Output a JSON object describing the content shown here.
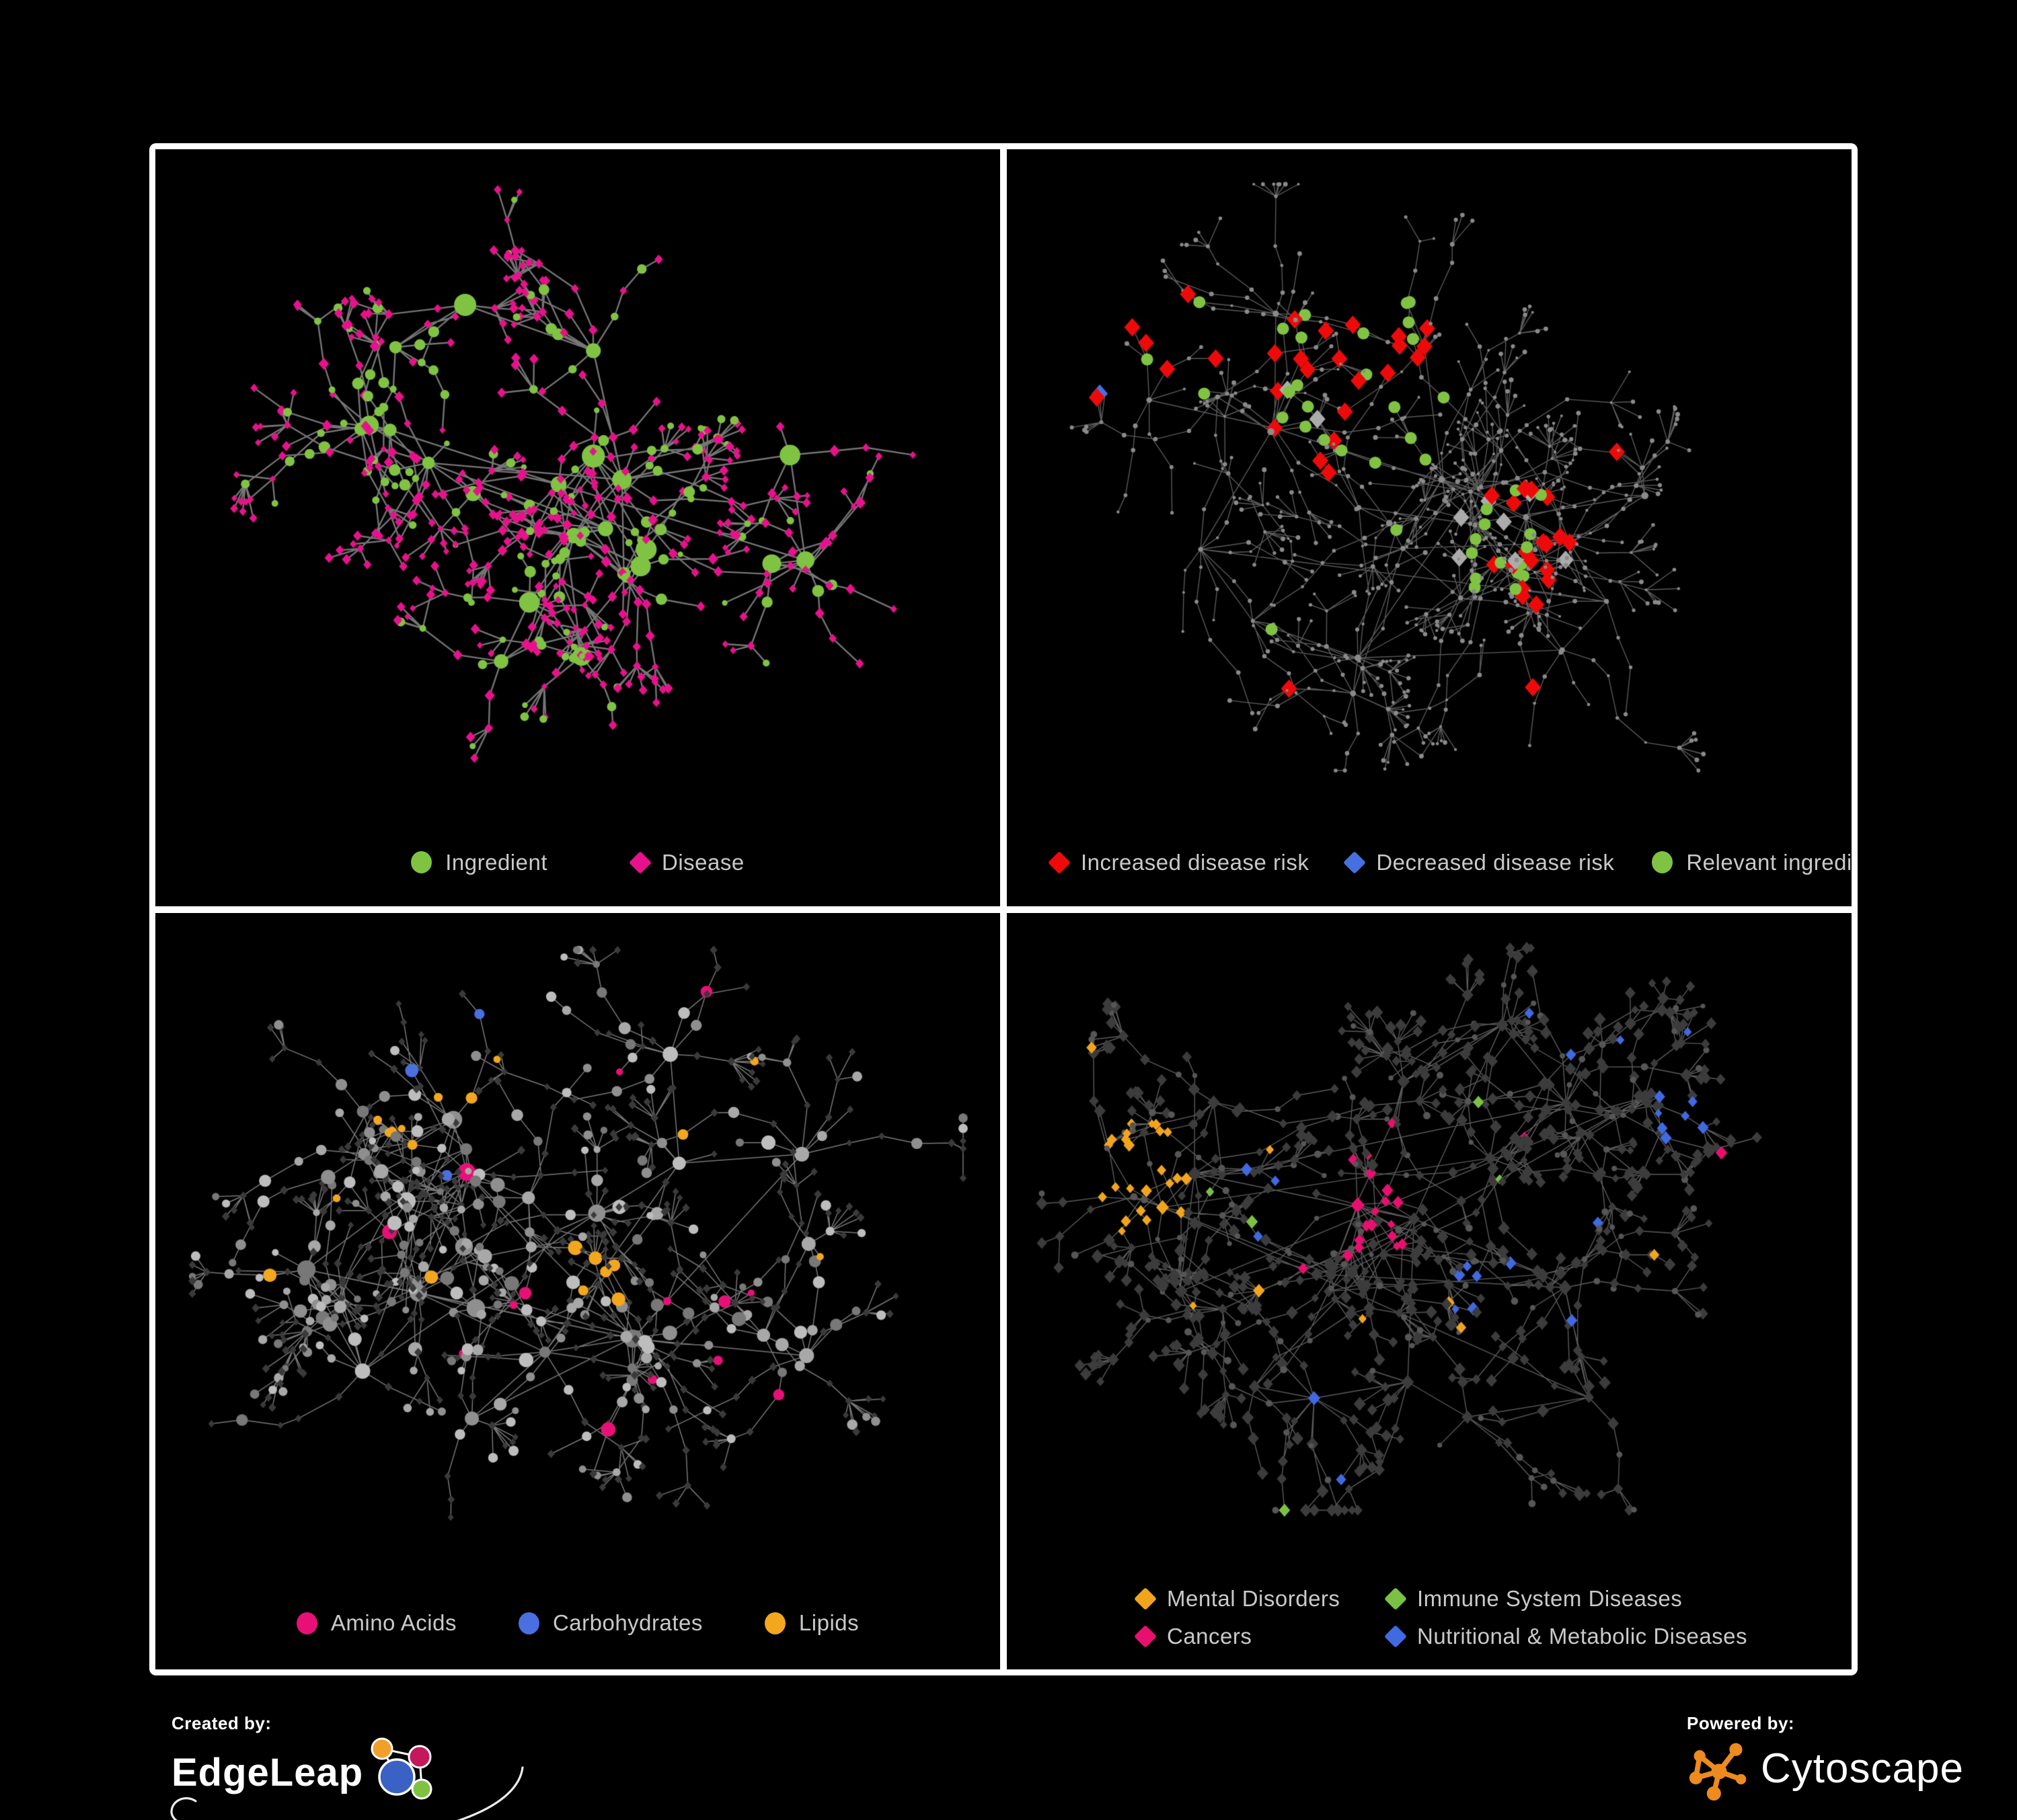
{
  "page": {
    "background": "#000000",
    "panel_border": "#FFFFFF"
  },
  "branding": {
    "created_by_label": "Created by:",
    "created_by_brand": "EdgeLeap",
    "powered_by_label": "Powered by:",
    "powered_by_brand": "Cytoscape",
    "cytoscape_icon_color": "#ED8B1E",
    "edgeleap_icon_colors": {
      "orange": "#F0A029",
      "crimson": "#C4175C",
      "blue": "#3A62C4",
      "green": "#7FC242"
    }
  },
  "chart_data": [
    {
      "id": "ingredient-disease",
      "position": "top-left",
      "type": "network",
      "description": "Bipartite association network of food ingredients (green circles) and diseases (pink diamonds); hub-and-spoke organic layout on black background, gray edges.",
      "approx_node_count": 650,
      "legend": [
        {
          "label": "Ingredient",
          "marker": "circle",
          "color": "#80C342"
        },
        {
          "label": "Disease",
          "marker": "diamond",
          "color": "#E8118C"
        }
      ],
      "style": {
        "edge_color": "#8A8A8A",
        "edge_width": 2.4,
        "background": "#000000",
        "legend_reserve": 150
      },
      "generation": {
        "seed": 7,
        "hubs": 22,
        "spread": 0.33,
        "branches_min": 3,
        "branches_max": 8,
        "chain_max": 3,
        "fan_prob": 0.5,
        "fan_max": 7,
        "extra_links": 0.55,
        "margin": 60
      },
      "paint": {
        "mode": "two-class",
        "circle_color": "#80C342",
        "diamond_color": "#E8118C",
        "mid_circle_frac": 0.42,
        "leaf_circle_frac": 0.14,
        "sizes": {
          "hub": [
            9,
            18
          ],
          "mid_circle": [
            5,
            9
          ],
          "leaf_circle": [
            4,
            7
          ],
          "mid_diamond": [
            5.5,
            8
          ],
          "leaf_diamond": [
            4.5,
            7
          ]
        }
      }
    },
    {
      "id": "disease-risk",
      "position": "top-right",
      "type": "network",
      "description": "Same network in muted gray with highlighted nodes: red diamonds = increased disease risk, blue diamonds = decreased disease risk, gray diamonds = neutral, green circles = relevant ingredients; highlights concentrated in the left-center core.",
      "approx_node_count": 750,
      "legend": [
        {
          "label": "Increased disease risk",
          "marker": "diamond",
          "color": "#EE0A0A"
        },
        {
          "label": "Decreased disease risk",
          "marker": "diamond",
          "color": "#466FE0"
        },
        {
          "label": "Relevant ingredient",
          "marker": "circle",
          "color": "#80C342"
        }
      ],
      "style": {
        "edge_color": "#6A6A6A",
        "edge_width": 1.4,
        "background": "#000000",
        "legend_reserve": 150
      },
      "generation": {
        "seed": 13,
        "hubs": 26,
        "spread": 0.4,
        "branches_min": 3,
        "branches_max": 9,
        "chain_max": 4,
        "fan_prob": 0.55,
        "fan_max": 8,
        "extra_links": 0.5,
        "margin": 52
      },
      "paint": {
        "mode": "highlight",
        "base_color": "#8A8A8A",
        "base_r": [
          2,
          3.6
        ],
        "highlight_sizes": {
          "diamond": 12,
          "circle": 9
        },
        "colors": {
          "red": "#EE0A0A",
          "blue": "#466FE0",
          "gray": "#ABABAB",
          "green": "#80C342"
        },
        "clusters": [
          {
            "x": 0.16,
            "y": 0.3,
            "r": 0.12,
            "density": 0.5,
            "weights": {
              "red": 0.3,
              "blue": 0.3,
              "gray": 0.12,
              "green": 0.28
            }
          },
          {
            "x": 0.42,
            "y": 0.36,
            "r": 0.15,
            "density": 0.5,
            "weights": {
              "red": 0.42,
              "gray": 0.08,
              "green": 0.4
            }
          },
          {
            "x": 0.6,
            "y": 0.6,
            "r": 0.09,
            "density": 0.45,
            "weights": {
              "red": 0.45,
              "gray": 0.15,
              "green": 0.35
            }
          },
          {
            "x": 0.8,
            "y": 0.17,
            "r": 0.035,
            "density": 0.8,
            "weights": {
              "blue": 1.0
            }
          },
          {
            "x": 0.62,
            "y": 0.82,
            "r": 0.05,
            "density": 0.5,
            "weights": {
              "red": 1.0
            }
          }
        ],
        "scatter": {
          "red": 0.006,
          "green": 0.004
        }
      }
    },
    {
      "id": "ingredient-classes",
      "position": "bottom-left",
      "type": "network",
      "description": "Ingredient nodes (circles) colored by compound class: pink = Amino Acids, blue = Carbohydrates, orange = Lipids, gray = other; diseases shown as small dark diamonds.",
      "approx_node_count": 700,
      "legend": [
        {
          "label": "Amino Acids",
          "marker": "circle",
          "color": "#E81077"
        },
        {
          "label": "Carbohydrates",
          "marker": "circle",
          "color": "#4A6FE0"
        },
        {
          "label": "Lipids",
          "marker": "circle",
          "color": "#F3A71E"
        }
      ],
      "style": {
        "edge_color": "#8D8D8D",
        "edge_width": 1.5,
        "background": "#000000",
        "legend_reserve": 150
      },
      "generation": {
        "seed": 21,
        "hubs": 24,
        "spread": 0.36,
        "branches_min": 3,
        "branches_max": 8,
        "chain_max": 4,
        "fan_prob": 0.5,
        "fan_max": 8,
        "extra_links": 0.5,
        "margin": 55
      },
      "paint": {
        "mode": "ingredient-classes",
        "circle_gray": [
          "#A8A8A8",
          "#8F8F8F",
          "#BDBDBD",
          "#787878"
        ],
        "diamond_color": "#3A3A3A",
        "colors": {
          "amino": "#E81077",
          "carb": "#4A6FE0",
          "lipid": "#F3A71E"
        },
        "mid_circle_frac": 0.5,
        "leaf_circle_frac": 0.28,
        "sizes": {
          "hub": [
            8,
            14
          ],
          "mid_circle": [
            6,
            11
          ],
          "leaf_circle": [
            5,
            8
          ],
          "diamond": [
            4.5,
            6
          ]
        },
        "clusters": [
          {
            "x": 0.35,
            "y": 0.21,
            "r": 0.085,
            "density": 0.8,
            "class": "lipid"
          },
          {
            "x": 0.3,
            "y": 0.33,
            "r": 0.05,
            "density": 0.5,
            "class": "lipid"
          },
          {
            "x": 0.52,
            "y": 0.55,
            "r": 0.035,
            "density": 0.8,
            "class": "lipid"
          },
          {
            "x": 0.38,
            "y": 0.185,
            "r": 0.045,
            "density": 0.35,
            "class": "carb"
          },
          {
            "x": 0.47,
            "y": 0.56,
            "r": 0.1,
            "density": 0.12,
            "class": "amino"
          }
        ],
        "scatter": {
          "lipid": 0.035,
          "carb": 0.012,
          "amino": 0.035
        }
      }
    },
    {
      "id": "disease-classes",
      "position": "bottom-right",
      "type": "network",
      "description": "Disease nodes (diamonds) colored by category: orange = Mental Disorders, green = Immune System Diseases, pink = Cancers, blue = Nutritional & Metabolic Diseases, dark gray = other; ingredients as small gray circles.",
      "approx_node_count": 750,
      "legend": [
        {
          "label": "Mental Disorders",
          "marker": "diamond",
          "color": "#F2A51C"
        },
        {
          "label": "Immune System Diseases",
          "marker": "diamond",
          "color": "#7CC143"
        },
        {
          "label": "Cancers",
          "marker": "diamond",
          "color": "#E8106F"
        },
        {
          "label": "Nutritional & Metabolic Diseases",
          "marker": "diamond",
          "color": "#4169E0"
        }
      ],
      "style": {
        "edge_color": "#6C6C6C",
        "edge_width": 1.4,
        "background": "#000000",
        "legend_reserve": 185
      },
      "generation": {
        "seed": 33,
        "hubs": 26,
        "spread": 0.38,
        "branches_min": 3,
        "branches_max": 9,
        "chain_max": 4,
        "fan_prob": 0.55,
        "fan_max": 8,
        "extra_links": 0.5,
        "margin": 52
      },
      "paint": {
        "mode": "disease-classes",
        "diamond_base": "#3C3C3C",
        "circle_color": "#565656",
        "mid_circle_frac": 0.18,
        "colors": {
          "mental": "#F2A51C",
          "immune": "#7CC143",
          "cancer": "#E8106F",
          "nutri": "#4169E0"
        },
        "sizes": {
          "hub": [
            7,
            10
          ],
          "diamond": [
            5.5,
            9
          ],
          "circle": [
            3.5,
            5.5
          ]
        },
        "clusters": [
          {
            "x": 0.145,
            "y": 0.42,
            "r": 0.1,
            "density": 0.8,
            "class": "mental"
          },
          {
            "x": 0.1,
            "y": 0.12,
            "r": 0.05,
            "density": 0.3,
            "class": "mental"
          },
          {
            "x": 0.42,
            "y": 0.47,
            "r": 0.09,
            "density": 0.55,
            "class": "cancer"
          },
          {
            "x": 0.86,
            "y": 0.2,
            "r": 0.05,
            "density": 0.6,
            "class": "cancer"
          },
          {
            "x": 0.57,
            "y": 0.6,
            "r": 0.06,
            "density": 0.6,
            "class": "nutri"
          },
          {
            "x": 0.8,
            "y": 0.32,
            "r": 0.06,
            "density": 0.45,
            "class": "nutri"
          },
          {
            "x": 0.42,
            "y": 0.05,
            "r": 0.05,
            "density": 0.5,
            "class": "nutri"
          },
          {
            "x": 0.68,
            "y": 0.08,
            "r": 0.04,
            "density": 0.4,
            "class": "nutri"
          }
        ],
        "scatter": {
          "nutri": 0.02,
          "mental": 0.01,
          "cancer": 0.012,
          "immune": 0.008
        }
      }
    }
  ]
}
